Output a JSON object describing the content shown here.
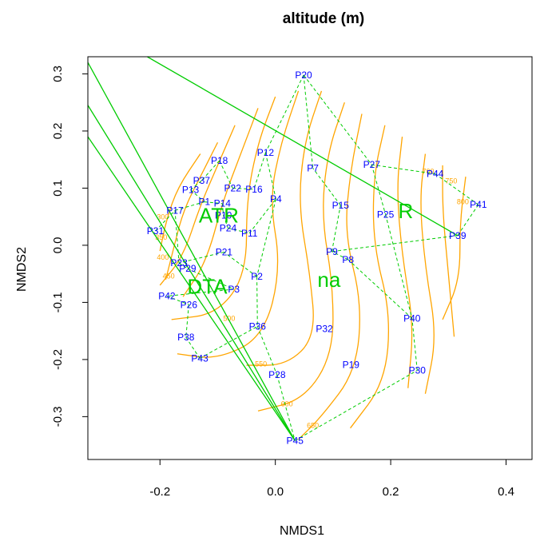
{
  "chart_data": {
    "type": "scatter",
    "title": "altitude (m)",
    "xlabel": "NMDS1",
    "ylabel": "NMDS2",
    "xlim": [
      -0.325,
      0.445
    ],
    "ylim": [
      -0.375,
      0.33
    ],
    "xticks": [
      -0.2,
      0.0,
      0.2,
      0.4
    ],
    "xtick_labels": [
      "-0.2",
      "0.0",
      "0.2",
      "0.4"
    ],
    "yticks": [
      -0.3,
      -0.2,
      -0.1,
      0.0,
      0.1,
      0.2,
      0.3
    ],
    "ytick_labels": [
      "-0.3",
      "-0.2",
      "-0.1",
      "0.0",
      "0.1",
      "0.2",
      "0.3"
    ],
    "colors": {
      "sites": "#0000ff",
      "vectors": "#00cc00",
      "contours": "#ffa500",
      "axes": "#000000"
    },
    "sites": [
      {
        "label": "P20",
        "x": 0.049,
        "y": 0.298
      },
      {
        "label": "P12",
        "x": -0.017,
        "y": 0.162
      },
      {
        "label": "P18",
        "x": -0.097,
        "y": 0.148
      },
      {
        "label": "P7",
        "x": 0.065,
        "y": 0.135
      },
      {
        "label": "P27",
        "x": 0.167,
        "y": 0.141
      },
      {
        "label": "P44",
        "x": 0.277,
        "y": 0.125
      },
      {
        "label": "P37",
        "x": -0.128,
        "y": 0.113
      },
      {
        "label": "P13",
        "x": -0.147,
        "y": 0.097
      },
      {
        "label": "P22",
        "x": -0.074,
        "y": 0.1
      },
      {
        "label": "P16",
        "x": -0.037,
        "y": 0.098
      },
      {
        "label": "P4",
        "x": 0.001,
        "y": 0.081
      },
      {
        "label": "P1",
        "x": -0.123,
        "y": 0.076
      },
      {
        "label": "P14",
        "x": -0.092,
        "y": 0.073
      },
      {
        "label": "P15",
        "x": 0.113,
        "y": 0.07
      },
      {
        "label": "P41",
        "x": 0.352,
        "y": 0.071
      },
      {
        "label": "P17",
        "x": -0.174,
        "y": 0.061
      },
      {
        "label": "P10",
        "x": -0.09,
        "y": 0.052
      },
      {
        "label": "P25",
        "x": 0.191,
        "y": 0.054
      },
      {
        "label": "P31",
        "x": -0.208,
        "y": 0.025
      },
      {
        "label": "P24",
        "x": -0.082,
        "y": 0.03
      },
      {
        "label": "P11",
        "x": -0.045,
        "y": 0.021
      },
      {
        "label": "P39",
        "x": 0.316,
        "y": 0.017
      },
      {
        "label": "P21",
        "x": -0.089,
        "y": -0.012
      },
      {
        "label": "P9",
        "x": 0.098,
        "y": -0.011
      },
      {
        "label": "P8",
        "x": 0.126,
        "y": -0.025
      },
      {
        "label": "P23",
        "x": -0.167,
        "y": -0.031
      },
      {
        "label": "P29",
        "x": -0.152,
        "y": -0.041
      },
      {
        "label": "P2",
        "x": -0.032,
        "y": -0.055
      },
      {
        "label": "P3",
        "x": -0.072,
        "y": -0.077
      },
      {
        "label": "P42",
        "x": -0.188,
        "y": -0.089
      },
      {
        "label": "P26",
        "x": -0.15,
        "y": -0.104
      },
      {
        "label": "P40",
        "x": 0.237,
        "y": -0.128
      },
      {
        "label": "P36",
        "x": -0.031,
        "y": -0.142
      },
      {
        "label": "P32",
        "x": 0.085,
        "y": -0.146
      },
      {
        "label": "P38",
        "x": -0.155,
        "y": -0.161
      },
      {
        "label": "P43",
        "x": -0.131,
        "y": -0.198
      },
      {
        "label": "P19",
        "x": 0.131,
        "y": -0.209
      },
      {
        "label": "P30",
        "x": 0.246,
        "y": -0.219
      },
      {
        "label": "P28",
        "x": 0.003,
        "y": -0.227
      },
      {
        "label": "P45",
        "x": 0.034,
        "y": -0.342
      }
    ],
    "vectors": [
      {
        "label": "ATR",
        "x": -0.098,
        "y": 0.052,
        "line_end": [
          -0.325,
          0.19
        ]
      },
      {
        "label": "DTA",
        "x": -0.118,
        "y": -0.072,
        "line_end": [
          -0.325,
          0.245
        ]
      },
      {
        "label": "R",
        "x": 0.226,
        "y": 0.06,
        "line_end": [
          -0.222,
          0.33
        ]
      },
      {
        "label": "na",
        "x": 0.093,
        "y": -0.06
      }
    ],
    "contour_levels": [
      300,
      350,
      400,
      450,
      500,
      550,
      600,
      650,
      700,
      750,
      800
    ]
  }
}
